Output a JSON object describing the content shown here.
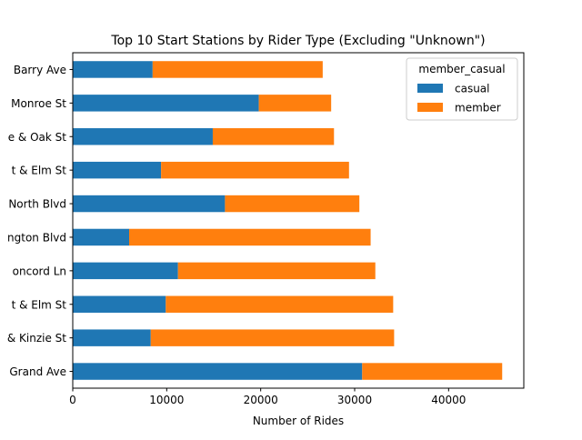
{
  "chart_data": {
    "type": "bar",
    "orientation": "horizontal",
    "stacked": true,
    "title": "Top 10 Start Stations by Rider Type (Excluding \"Unknown\")",
    "xlabel": "Number of Rides",
    "ylabel": "",
    "xlim": [
      0,
      48000
    ],
    "xticks": [
      0,
      10000,
      20000,
      30000,
      40000
    ],
    "xtick_labels": [
      "0",
      "10000",
      "20000",
      "30000",
      "40000"
    ],
    "grid": false,
    "legend": {
      "title": "member_casual",
      "placement": "top-right"
    },
    "categories": [
      "Barry Ave",
      "Monroe St",
      "e & Oak St",
      "t & Elm St",
      "North Blvd",
      "ngton Blvd",
      "oncord Ln",
      "t & Elm St",
      "& Kinzie St",
      "Grand Ave"
    ],
    "series": [
      {
        "name": "casual",
        "color": "#1f77b4",
        "values": [
          8500,
          19800,
          14900,
          9400,
          16200,
          6000,
          11200,
          9900,
          8300,
          30800
        ]
      },
      {
        "name": "member",
        "color": "#ff7f0e",
        "values": [
          18100,
          7700,
          12900,
          20000,
          14300,
          25700,
          21000,
          24200,
          25900,
          14900
        ]
      }
    ]
  }
}
